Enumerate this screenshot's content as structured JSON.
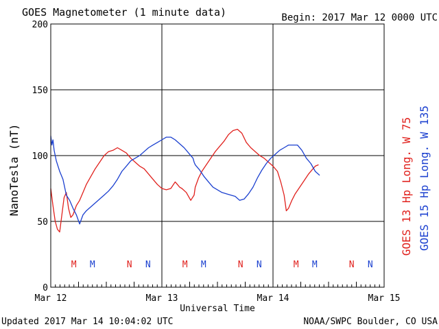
{
  "header": {
    "title": "GOES Magnetometer (1 minute data)",
    "begin": "Begin:  2017 Mar 12 0000 UTC"
  },
  "footer": {
    "updated": "Updated 2017 Mar 14 10:04:02 UTC",
    "credit": "NOAA/SWPC Boulder, CO USA"
  },
  "colors": {
    "goes13": "#e0201c",
    "goes15": "#1a3fcf",
    "grid": "#000000"
  },
  "chart_data": {
    "type": "line",
    "title": "GOES Magnetometer (1 minute data)",
    "xlabel": "Universal Time",
    "ylabel": "NanoTesla (nT)",
    "xlim": [
      0,
      3
    ],
    "ylim": [
      0,
      200
    ],
    "x_tick_labels": [
      "Mar 12",
      "Mar 13",
      "Mar 14",
      "Mar 15"
    ],
    "y_ticks": [
      0,
      50,
      100,
      150,
      200
    ],
    "grid": true,
    "series": [
      {
        "name": "GOES 13 Hp  Long. W 75",
        "color": "#e0201c",
        "x": [
          0.0,
          0.02,
          0.04,
          0.06,
          0.08,
          0.1,
          0.12,
          0.14,
          0.16,
          0.18,
          0.2,
          0.23,
          0.26,
          0.29,
          0.32,
          0.36,
          0.4,
          0.44,
          0.48,
          0.52,
          0.56,
          0.6,
          0.64,
          0.68,
          0.72,
          0.76,
          0.8,
          0.84,
          0.88,
          0.92,
          0.96,
          1.0,
          1.04,
          1.08,
          1.12,
          1.14,
          1.16,
          1.18,
          1.22,
          1.26,
          1.29,
          1.3,
          1.33,
          1.36,
          1.4,
          1.44,
          1.48,
          1.52,
          1.56,
          1.6,
          1.64,
          1.68,
          1.72,
          1.76,
          1.8,
          1.84,
          1.88,
          1.92,
          1.96,
          2.0,
          2.04,
          2.07,
          2.1,
          2.12,
          2.14,
          2.17,
          2.2,
          2.24,
          2.28,
          2.32,
          2.35,
          2.38,
          2.41
        ],
        "y": [
          75,
          62,
          50,
          44,
          42,
          55,
          68,
          72,
          60,
          53,
          55,
          62,
          66,
          72,
          78,
          84,
          90,
          95,
          100,
          103,
          104,
          106,
          104,
          102,
          98,
          95,
          92,
          90,
          86,
          82,
          78,
          75,
          74,
          75,
          80,
          78,
          76,
          75,
          72,
          66,
          70,
          76,
          83,
          88,
          93,
          98,
          103,
          107,
          111,
          116,
          119,
          120,
          117,
          110,
          106,
          103,
          100,
          98,
          95,
          92,
          88,
          80,
          70,
          58,
          60,
          66,
          71,
          76,
          81,
          86,
          89,
          92,
          93
        ]
      },
      {
        "name": "GOES 15 Hp  Long. W 135",
        "color": "#1a3fcf",
        "x": [
          0.0,
          0.01,
          0.02,
          0.03,
          0.05,
          0.08,
          0.11,
          0.14,
          0.17,
          0.2,
          0.23,
          0.26,
          0.29,
          0.32,
          0.36,
          0.4,
          0.44,
          0.48,
          0.52,
          0.56,
          0.6,
          0.64,
          0.68,
          0.72,
          0.76,
          0.8,
          0.84,
          0.88,
          0.92,
          0.96,
          1.0,
          1.04,
          1.08,
          1.12,
          1.16,
          1.2,
          1.24,
          1.28,
          1.29,
          1.3,
          1.34,
          1.38,
          1.42,
          1.46,
          1.5,
          1.54,
          1.58,
          1.62,
          1.66,
          1.7,
          1.74,
          1.78,
          1.82,
          1.86,
          1.9,
          1.94,
          1.98,
          2.02,
          2.06,
          2.1,
          2.14,
          2.18,
          2.22,
          2.26,
          2.3,
          2.34,
          2.38,
          2.42
        ],
        "y": [
          115,
          108,
          112,
          104,
          96,
          88,
          82,
          70,
          66,
          60,
          55,
          48,
          55,
          58,
          61,
          64,
          67,
          70,
          73,
          77,
          82,
          88,
          92,
          96,
          98,
          100,
          103,
          106,
          108,
          110,
          112,
          114,
          114,
          112,
          109,
          106,
          102,
          98,
          95,
          93,
          89,
          84,
          80,
          76,
          74,
          72,
          71,
          70,
          69,
          66,
          67,
          71,
          76,
          83,
          89,
          94,
          98,
          101,
          104,
          106,
          108,
          108,
          108,
          104,
          98,
          94,
          88,
          85
        ]
      }
    ],
    "markers": [
      {
        "label": "M",
        "x": 0.208,
        "series": "GOES 13 Hp  Long. W 75"
      },
      {
        "label": "M",
        "x": 0.375,
        "series": "GOES 15 Hp  Long. W 135"
      },
      {
        "label": "N",
        "x": 0.708,
        "series": "GOES 13 Hp  Long. W 75"
      },
      {
        "label": "N",
        "x": 0.875,
        "series": "GOES 15 Hp  Long. W 135"
      },
      {
        "label": "M",
        "x": 1.208,
        "series": "GOES 13 Hp  Long. W 75"
      },
      {
        "label": "M",
        "x": 1.375,
        "series": "GOES 15 Hp  Long. W 135"
      },
      {
        "label": "N",
        "x": 1.708,
        "series": "GOES 13 Hp  Long. W 75"
      },
      {
        "label": "N",
        "x": 1.875,
        "series": "GOES 15 Hp  Long. W 135"
      },
      {
        "label": "M",
        "x": 2.208,
        "series": "GOES 13 Hp  Long. W 75"
      },
      {
        "label": "M",
        "x": 2.375,
        "series": "GOES 15 Hp  Long. W 135"
      },
      {
        "label": "N",
        "x": 2.708,
        "series": "GOES 13 Hp  Long. W 75"
      },
      {
        "label": "N",
        "x": 2.875,
        "series": "GOES 15 Hp  Long. W 135"
      }
    ]
  }
}
